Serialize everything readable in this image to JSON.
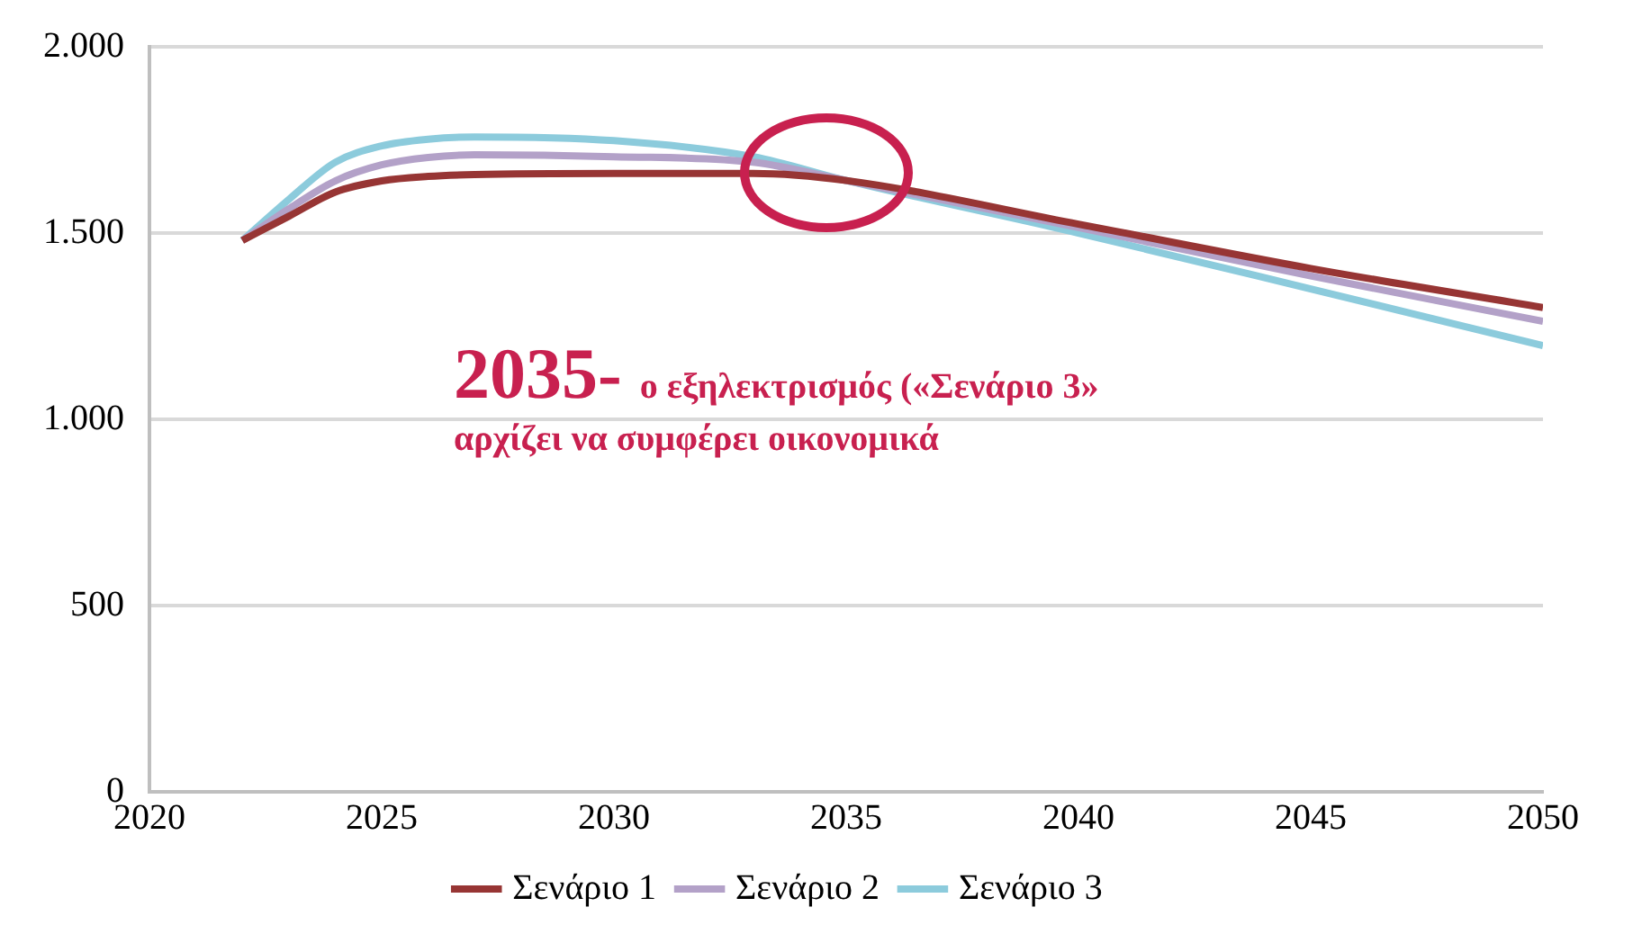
{
  "chart_data": {
    "type": "line",
    "annotations": [
      "2035- ο εξηλεκτρισμός («Σενάριο 3» αρχίζει να συμφέρει οικονομικά"
    ],
    "x": [
      2022,
      2023,
      2024,
      2025,
      2026,
      2027,
      2030,
      2033,
      2035,
      2040,
      2045,
      2050
    ],
    "series": [
      {
        "name": "Σενάριο 1",
        "color": "#973534",
        "values": [
          1480,
          1545,
          1610,
          1640,
          1652,
          1657,
          1660,
          1660,
          1641,
          1524,
          1405,
          1300
        ]
      },
      {
        "name": "Σενάριο 2",
        "color": "#b3a1c8",
        "values": [
          1480,
          1565,
          1640,
          1683,
          1703,
          1710,
          1705,
          1690,
          1641,
          1515,
          1385,
          1263
        ]
      },
      {
        "name": "Σενάριο 3",
        "color": "#8ccbdc",
        "values": [
          1480,
          1590,
          1690,
          1734,
          1752,
          1758,
          1748,
          1705,
          1641,
          1500,
          1350,
          1198
        ]
      }
    ],
    "xlim": [
      2020,
      2050
    ],
    "xticks": [
      2020,
      2025,
      2030,
      2035,
      2040,
      2045,
      2050
    ],
    "ylim": [
      0,
      2000
    ],
    "yticks": [
      0,
      500,
      {
        "value": 1000,
        "label": "1.000"
      },
      {
        "value": 1500,
        "label": "1.500"
      },
      {
        "value": 2000,
        "label": "2.000"
      }
    ],
    "grid": "y",
    "legend": "bottom",
    "marker": "none",
    "line_style": "solid"
  }
}
